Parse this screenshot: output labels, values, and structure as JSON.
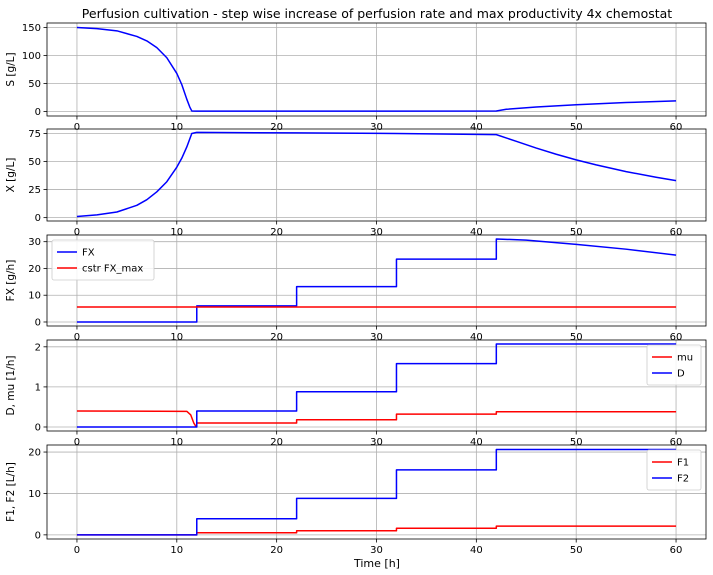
{
  "figure": {
    "title": "Perfusion cultivation - step wise increase of perfusion rate and max productivity 4x chemostat",
    "xlabel": "Time [h]"
  },
  "colors": {
    "blue": "#0000ff",
    "red": "#ff0000",
    "grid": "#b0b0b0"
  },
  "chart_data": [
    {
      "type": "line",
      "ylabel": "S [g/L]",
      "xlim": [
        -3,
        63
      ],
      "ylim": [
        -8,
        158
      ],
      "xticks": [
        0,
        10,
        20,
        30,
        40,
        50,
        60
      ],
      "yticks": [
        0,
        50,
        100,
        150
      ],
      "grid": true,
      "legend": "",
      "series": [
        {
          "name": "",
          "color": "#0000ff",
          "x": [
            0,
            2,
            4,
            6,
            7,
            8,
            9,
            10,
            10.5,
            11,
            11.3,
            11.5,
            12,
            20,
            32,
            42,
            43,
            46,
            50,
            55,
            60
          ],
          "y": [
            150,
            148,
            144,
            134,
            126,
            114,
            96,
            68,
            48,
            22,
            8,
            1,
            0.6,
            0.6,
            0.8,
            1,
            4,
            8,
            12,
            16,
            19
          ]
        }
      ]
    },
    {
      "type": "line",
      "ylabel": "X [g/L]",
      "xlim": [
        -3,
        63
      ],
      "ylim": [
        -3,
        79
      ],
      "xticks": [
        0,
        10,
        20,
        30,
        40,
        50,
        60
      ],
      "yticks": [
        0,
        25,
        50,
        75
      ],
      "grid": true,
      "legend": "",
      "series": [
        {
          "name": "",
          "color": "#0000ff",
          "x": [
            0,
            2,
            4,
            6,
            7,
            8,
            9,
            10,
            10.5,
            11,
            11.5,
            12,
            22,
            32,
            42,
            44,
            46,
            48,
            50,
            52,
            55,
            58,
            60
          ],
          "y": [
            1,
            2.5,
            5,
            11,
            16,
            23,
            32,
            45,
            53,
            63,
            75,
            76,
            75.5,
            75,
            74,
            68,
            62,
            56.5,
            51.5,
            47,
            41,
            36,
            33
          ]
        }
      ]
    },
    {
      "type": "line",
      "ylabel": "FX [g/h]",
      "xlim": [
        -3,
        63
      ],
      "ylim": [
        -1.5,
        32.5
      ],
      "xticks": [
        0,
        10,
        20,
        30,
        40,
        50,
        60
      ],
      "yticks": [
        0,
        10,
        20,
        30
      ],
      "grid": true,
      "legend": "upper-left",
      "series": [
        {
          "name": "FX",
          "color": "#0000ff",
          "x": [
            0,
            12,
            12,
            22,
            22,
            32,
            32,
            42,
            42,
            45,
            50,
            55,
            60
          ],
          "y": [
            0,
            0,
            6,
            6,
            13.2,
            13.2,
            23.5,
            23.5,
            31,
            30.6,
            29,
            27.2,
            25
          ]
        },
        {
          "name": "cstr FX_max",
          "color": "#ff0000",
          "x": [
            0,
            60
          ],
          "y": [
            5.6,
            5.6
          ]
        }
      ]
    },
    {
      "type": "line",
      "ylabel": "D, mu [1/h]",
      "xlim": [
        -3,
        63
      ],
      "ylim": [
        -0.1,
        2.17
      ],
      "xticks": [
        0,
        10,
        20,
        30,
        40,
        50,
        60
      ],
      "yticks": [
        0,
        1,
        2
      ],
      "grid": true,
      "legend": "upper-right",
      "series": [
        {
          "name": "mu",
          "color": "#ff0000",
          "x": [
            0,
            11,
            11.4,
            11.7,
            11.9,
            12,
            12,
            22,
            22,
            32,
            32,
            42,
            42,
            60
          ],
          "y": [
            0.4,
            0.39,
            0.3,
            0.1,
            0.02,
            0.02,
            0.1,
            0.1,
            0.18,
            0.18,
            0.32,
            0.32,
            0.38,
            0.38
          ]
        },
        {
          "name": "D",
          "color": "#0000ff",
          "x": [
            0,
            12,
            12,
            22,
            22,
            32,
            32,
            42,
            42,
            60
          ],
          "y": [
            0,
            0,
            0.4,
            0.4,
            0.88,
            0.88,
            1.58,
            1.58,
            2.07,
            2.07
          ]
        }
      ]
    },
    {
      "type": "line",
      "ylabel": "F1, F2 [L/h]",
      "xlim": [
        -3,
        63
      ],
      "ylim": [
        -1,
        21.7
      ],
      "xticks": [
        0,
        10,
        20,
        30,
        40,
        50,
        60
      ],
      "yticks": [
        0,
        10,
        20
      ],
      "grid": true,
      "legend": "upper-right",
      "series": [
        {
          "name": "F1",
          "color": "#ff0000",
          "x": [
            0,
            12,
            12,
            22,
            22,
            32,
            32,
            42,
            42,
            60
          ],
          "y": [
            0,
            0,
            0.5,
            0.5,
            1,
            1,
            1.6,
            1.6,
            2.1,
            2.1
          ]
        },
        {
          "name": "F2",
          "color": "#0000ff",
          "x": [
            0,
            12,
            12,
            22,
            22,
            32,
            32,
            42,
            42,
            60
          ],
          "y": [
            0,
            0,
            3.9,
            3.9,
            8.8,
            8.8,
            15.7,
            15.7,
            20.6,
            20.6
          ]
        }
      ]
    }
  ]
}
